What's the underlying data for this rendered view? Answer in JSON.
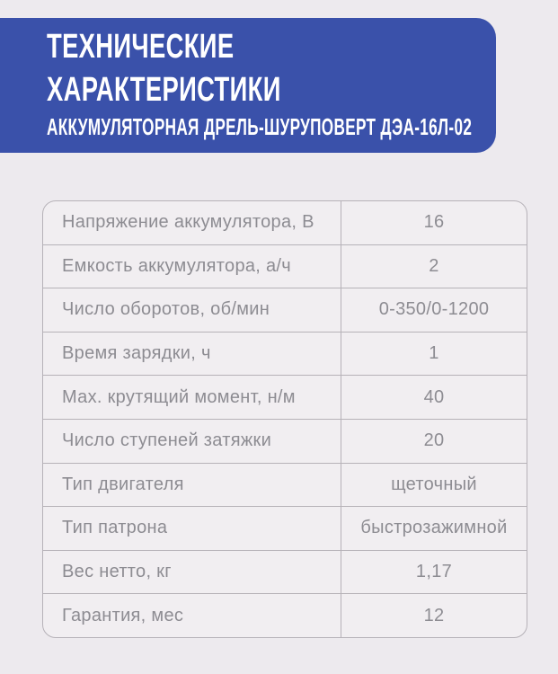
{
  "header": {
    "title": "ТЕХНИЧЕСКИЕ\nХАРАКТЕРИСТИКИ",
    "subtitle": "АККУМУЛЯТОРНАЯ ДРЕЛЬ-ШУРУПОВЕРТ ДЭА-16Л-02"
  },
  "table": {
    "rows": [
      {
        "label": "Напряжение аккумулятора, В",
        "value": "16"
      },
      {
        "label": "Емкость аккумулятора, а/ч",
        "value": "2"
      },
      {
        "label": "Число оборотов, об/мин",
        "value": "0-350/0-1200"
      },
      {
        "label": "Время зарядки, ч",
        "value": "1"
      },
      {
        "label": "Мах. крутящий момент, н/м",
        "value": "40"
      },
      {
        "label": "Число ступеней затяжки",
        "value": "20"
      },
      {
        "label": "Тип двигателя",
        "value": "щеточный"
      },
      {
        "label": "Тип патрона",
        "value": "быстрозажимной"
      },
      {
        "label": "Вес нетто, кг",
        "value": "1,17"
      },
      {
        "label": "Гарантия, мес",
        "value": "12"
      }
    ]
  },
  "colors": {
    "banner_background": "#3a51aa",
    "page_background": "#edeaee",
    "title_text": "#ffffff",
    "table_text": "#8d8c92",
    "table_border": "#b6b2b8"
  }
}
